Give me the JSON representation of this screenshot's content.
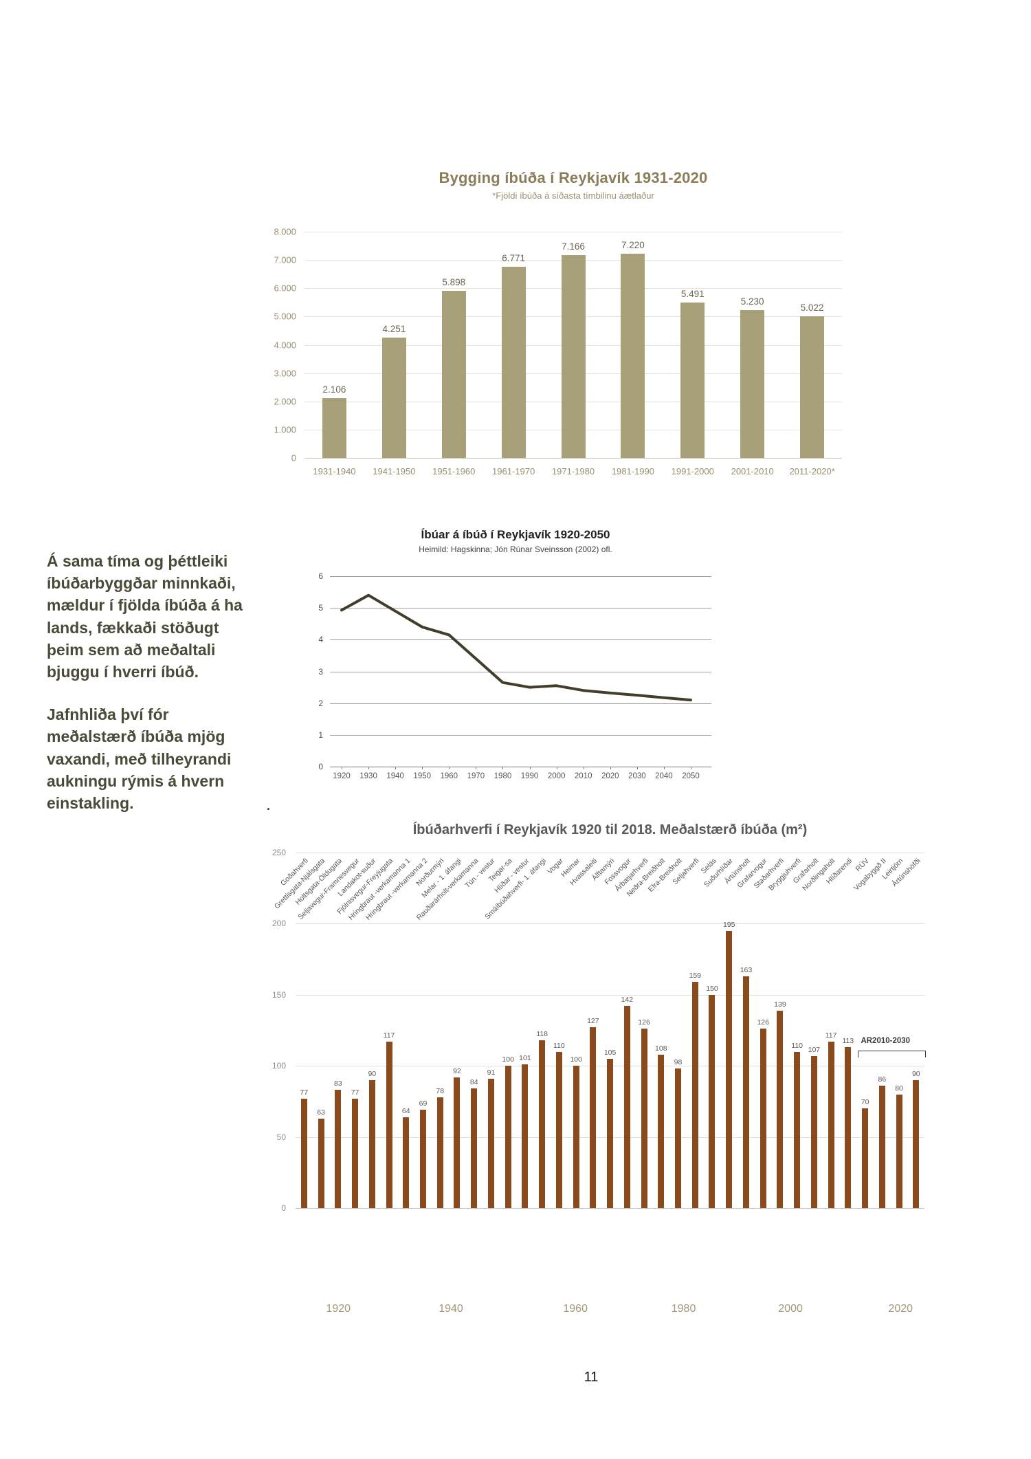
{
  "page_number": "11",
  "sidebar_text": {
    "para1": "Á sama tíma og þéttleiki íbúðarbyggðar minnkaði, mældur í fjölda íbúða á ha lands, fækkaði stöðugt þeim sem að meðaltali bjuggu í hverri íbúð.",
    "para2": "Jafnhliða því fór meðalstærð íbúða mjög vaxandi, með tilheyrandi aukningu rýmis á hvern einstakling.",
    "stray_dot": "."
  },
  "chart_data": [
    {
      "type": "bar",
      "title": "Bygging íbúða í Reykjavík 1931-2020",
      "subtitle": "*Fjöldi íbúða á síðasta tímbilinu áætlaður",
      "categories": [
        "1931-1940",
        "1941-1950",
        "1951-1960",
        "1961-1970",
        "1971-1980",
        "1981-1990",
        "1991-2000",
        "2001-2010",
        "2011-2020*"
      ],
      "values": [
        2106,
        4251,
        5898,
        6771,
        7166,
        7220,
        5491,
        5230,
        5022
      ],
      "value_labels": [
        "2.106",
        "4.251",
        "5.898",
        "6.771",
        "7.166",
        "7.220",
        "5.491",
        "5.230",
        "5.022"
      ],
      "ylim": [
        0,
        8000
      ],
      "ytick_values": [
        0,
        1000,
        2000,
        3000,
        4000,
        5000,
        6000,
        7000,
        8000
      ],
      "ytick_labels": [
        "0",
        "1.000",
        "2.000",
        "3.000",
        "4.000",
        "5.000",
        "6.000",
        "7.000",
        "8.000"
      ],
      "bar_color": "#a7a078",
      "grid": true,
      "legend": "none"
    },
    {
      "type": "line",
      "title": "Íbúar á íbúð í Reykjavík 1920-2050",
      "subtitle": "Heimild: Hagskinna; Jón Rúnar Sveinsson (2002) ofl.",
      "x": [
        1920,
        1930,
        1940,
        1950,
        1960,
        1970,
        1980,
        1990,
        2000,
        2010,
        2020,
        2030,
        2040,
        2050
      ],
      "values": [
        4.93,
        5.4,
        4.9,
        4.4,
        4.15,
        3.4,
        2.65,
        2.5,
        2.55,
        2.4,
        2.32,
        2.25,
        2.17,
        2.1
      ],
      "ylim": [
        0,
        6
      ],
      "ytick_values": [
        0,
        1,
        2,
        3,
        4,
        5,
        6
      ],
      "line_color": "#423d2c",
      "grid": true,
      "legend": "none"
    },
    {
      "type": "bar",
      "title": "Íbúðarhverfi í Reykjavík 1920 til 2018. Meðalstærð íbúða (m²)",
      "categories": [
        "Goðahverfi",
        "Grettisgata-Njálsgata",
        "Holtsgata-Öldugata",
        "Seljavegur-Framnesvegur",
        "Landakot-suður",
        "Fjölnisvegur-Freyjugata",
        "Hringbraut -verkamanna 1",
        "Hringbraut -verkamanna 2",
        "Norðurmýri",
        "Melar - 1. áfangi",
        "Rauðarárholt-verkamanna",
        "Tún - vestur",
        "Teigar-sa",
        "Hlíðar - vestur",
        "Smáíbúðahverfi- 1. áfangi",
        "Vogar",
        "Heimar",
        "Hvassaleiti",
        "Álftamýri",
        "Fossvogur",
        "Árbæjarhverfi",
        "Neðra-Breiðholt",
        "Efra-Breiðholt",
        "Seljahverfi",
        "Selás",
        "Suðurhlíðar",
        "Ártúnsholt",
        "Grafarvogur",
        "Staðarhverfi",
        "Bryggjuhverfi",
        "Grafarholt",
        "Norðlingaholt",
        "Hlíðarendi",
        "RÚV",
        "Vogabyggð II",
        "Leirtjörn",
        "Ártúnshöfði"
      ],
      "values": [
        77,
        63,
        83,
        77,
        90,
        117,
        64,
        69,
        78,
        92,
        84,
        91,
        100,
        101,
        118,
        110,
        100,
        127,
        105,
        142,
        126,
        108,
        98,
        159,
        150,
        195,
        163,
        126,
        139,
        110,
        107,
        117,
        113,
        70,
        86,
        80,
        90
      ],
      "ylim": [
        0,
        250
      ],
      "ytick_values": [
        0,
        50,
        100,
        150,
        200,
        250
      ],
      "ytick_labels": [
        "0",
        "50",
        "100",
        "150",
        "200",
        "250"
      ],
      "bar_color": "#8a4a1c",
      "grid": true,
      "legend": "none",
      "annotation": {
        "label": "AR2010-2030",
        "from_category": "RÚV",
        "to_category": "Ártúnshöfði",
        "from_index": 33,
        "to_index": 36
      },
      "decade_axis": {
        "labels": [
          "1920",
          "1940",
          "1960",
          "1980",
          "2000",
          "2020"
        ],
        "positions_pct": [
          6.8,
          24.7,
          44.5,
          61.7,
          78.7,
          96.2
        ]
      }
    }
  ]
}
